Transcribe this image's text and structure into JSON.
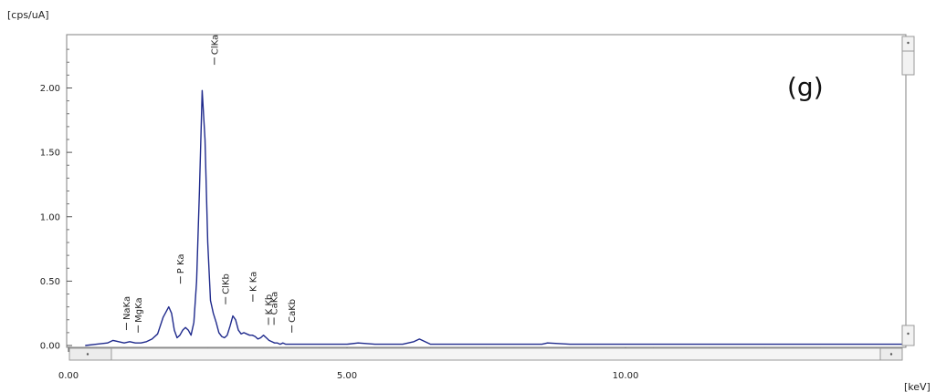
{
  "chart_data": {
    "type": "line",
    "ylabel": "[cps/uA]",
    "xlabel": "[keV]",
    "annotation": "(g)",
    "xlim": [
      0,
      15
    ],
    "ylim": [
      0,
      2.4
    ],
    "x_ticks": [
      {
        "value": 0,
        "label": "0.00"
      },
      {
        "value": 5,
        "label": "5.00"
      },
      {
        "value": 10,
        "label": "10.00"
      }
    ],
    "y_ticks": [
      {
        "value": 0,
        "label": "0.00"
      },
      {
        "value": 0.5,
        "label": "0.50"
      },
      {
        "value": 1.0,
        "label": "1.00"
      },
      {
        "value": 1.5,
        "label": "1.50"
      },
      {
        "value": 2.0,
        "label": "2.00"
      }
    ],
    "grid": false,
    "line_color": "#1f2a8c",
    "series": [
      {
        "x": [
          0.3,
          0.5,
          0.7,
          0.8,
          0.9,
          1.0,
          1.1,
          1.2,
          1.3,
          1.4,
          1.5,
          1.6,
          1.7,
          1.8,
          1.85,
          1.9,
          1.95,
          2.0,
          2.05,
          2.1,
          2.15,
          2.2,
          2.25,
          2.3,
          2.35,
          2.4,
          2.45,
          2.5,
          2.55,
          2.6,
          2.65,
          2.7,
          2.75,
          2.8,
          2.85,
          2.9,
          2.95,
          3.0,
          3.05,
          3.1,
          3.15,
          3.2,
          3.25,
          3.3,
          3.35,
          3.4,
          3.45,
          3.5,
          3.55,
          3.6,
          3.65,
          3.7,
          3.75,
          3.8,
          3.85,
          3.9,
          3.95,
          4.0,
          4.2,
          4.5,
          5.0,
          5.2,
          5.5,
          6.0,
          6.2,
          6.3,
          6.4,
          6.5,
          6.7,
          7.0,
          7.5,
          8.0,
          8.5,
          8.6,
          9.0,
          10.0,
          11.0,
          12.0,
          13.0,
          14.0,
          15.0
        ],
        "y": [
          0.0,
          0.01,
          0.02,
          0.04,
          0.03,
          0.02,
          0.03,
          0.02,
          0.02,
          0.03,
          0.05,
          0.09,
          0.22,
          0.3,
          0.25,
          0.12,
          0.06,
          0.08,
          0.12,
          0.14,
          0.12,
          0.08,
          0.18,
          0.5,
          1.2,
          1.98,
          1.6,
          0.8,
          0.35,
          0.25,
          0.18,
          0.1,
          0.07,
          0.06,
          0.08,
          0.15,
          0.23,
          0.2,
          0.12,
          0.09,
          0.1,
          0.09,
          0.08,
          0.08,
          0.07,
          0.05,
          0.06,
          0.08,
          0.06,
          0.04,
          0.03,
          0.02,
          0.02,
          0.01,
          0.02,
          0.01,
          0.01,
          0.01,
          0.01,
          0.01,
          0.01,
          0.02,
          0.01,
          0.01,
          0.03,
          0.05,
          0.03,
          0.01,
          0.01,
          0.01,
          0.01,
          0.01,
          0.01,
          0.02,
          0.01,
          0.01,
          0.01,
          0.01,
          0.01,
          0.01,
          0.01
        ]
      }
    ],
    "peak_labels": [
      {
        "label": "NaKa",
        "x": 1.04,
        "y": 0.12
      },
      {
        "label": "MgKa",
        "x": 1.25,
        "y": 0.1
      },
      {
        "label": "P Ka",
        "x": 2.01,
        "y": 0.48
      },
      {
        "label": "ClKa",
        "x": 2.62,
        "y": 2.18
      },
      {
        "label": "ClKb",
        "x": 2.82,
        "y": 0.32
      },
      {
        "label": "K Ka",
        "x": 3.31,
        "y": 0.34
      },
      {
        "label": "K Kb",
        "x": 3.59,
        "y": 0.16
      },
      {
        "label": "CaKa",
        "x": 3.69,
        "y": 0.16
      },
      {
        "label": "CaKb",
        "x": 4.01,
        "y": 0.1
      }
    ]
  }
}
